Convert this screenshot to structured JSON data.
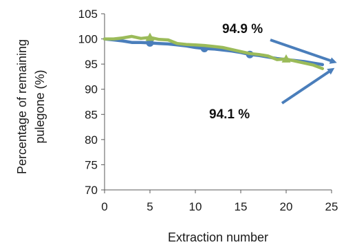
{
  "chart_data": {
    "type": "line",
    "title": "",
    "xlabel": "Extraction number",
    "ylabel_line1": "Percentage of remaining",
    "ylabel_line2": "pulegone (%)",
    "xlim": [
      0,
      25
    ],
    "ylim": [
      70,
      105
    ],
    "xticks": [
      0,
      5,
      10,
      15,
      20,
      25
    ],
    "yticks": [
      70,
      75,
      80,
      85,
      90,
      95,
      100,
      105
    ],
    "grid": false,
    "legend": "none",
    "series": [
      {
        "color": "#4a7ebb",
        "marker": "circle",
        "x": [
          0,
          1,
          2,
          3,
          4,
          5,
          6,
          7,
          8,
          9,
          10,
          11,
          12,
          13,
          14,
          15,
          16,
          17,
          18,
          19,
          20,
          21,
          22,
          23,
          24
        ],
        "y": [
          100,
          99.8,
          99.6,
          99.3,
          99.3,
          99.2,
          99.1,
          99.0,
          98.8,
          98.6,
          98.3,
          98.1,
          98.0,
          97.8,
          97.6,
          97.3,
          96.9,
          96.7,
          96.4,
          96.1,
          95.9,
          95.7,
          95.5,
          95.2,
          94.9
        ],
        "markers_at": [
          5,
          11,
          16
        ]
      },
      {
        "color": "#9bbb59",
        "marker": "triangle",
        "x": [
          0,
          1,
          2,
          3,
          4,
          5,
          6,
          7,
          8,
          9,
          10,
          11,
          12,
          13,
          14,
          15,
          16,
          17,
          18,
          19,
          20,
          21,
          22,
          23,
          24
        ],
        "y": [
          100,
          100,
          100.2,
          100.5,
          100.1,
          100.3,
          99.9,
          99.8,
          99.1,
          98.9,
          98.8,
          98.7,
          98.5,
          98.3,
          97.9,
          97.5,
          97.1,
          96.9,
          96.6,
          95.9,
          96.0,
          95.6,
          95.2,
          94.8,
          94.1
        ],
        "markers_at": [
          5,
          20
        ]
      }
    ],
    "annotations": [
      {
        "text": "94.9 %",
        "arrow_to": [
          24,
          94.9
        ]
      },
      {
        "text": "94.1 %",
        "arrow_to": [
          24,
          94.1
        ]
      }
    ]
  }
}
